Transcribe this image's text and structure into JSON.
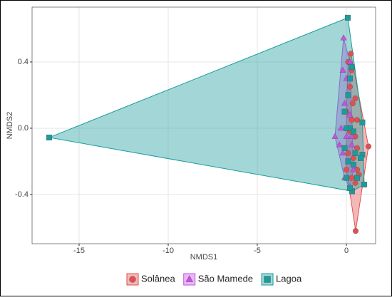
{
  "chart_data": {
    "type": "scatter",
    "x_label": "NMDS1",
    "y_label": "NMDS2",
    "xlim": [
      -17.64,
      1.64
    ],
    "ylim": [
      -0.697,
      0.731
    ],
    "xticks": [
      -15,
      -10,
      -5,
      0
    ],
    "yticks": [
      -0.4,
      {
        "value": 0,
        "label": "0.0"
      },
      0.4
    ],
    "grid": true,
    "hulls": true,
    "legend": "bottom",
    "series": [
      {
        "name": "Solânea",
        "color": "#e0504f",
        "shape": "circle",
        "x": [
          0.52,
          1.24,
          0.6,
          0.3,
          0.1,
          0.5,
          0.6,
          0.2,
          0.0,
          0.3,
          0.5,
          0.2,
          0.1,
          0.4,
          0.6,
          0.3,
          0.0,
          0.5,
          0.7,
          0.35,
          0.25
        ],
        "y": [
          -0.62,
          -0.11,
          -0.25,
          0.35,
          0.4,
          0.18,
          0.05,
          0.25,
          0.1,
          0.05,
          -0.05,
          -0.02,
          -0.15,
          -0.18,
          -0.12,
          -0.3,
          -0.25,
          -0.33,
          -0.28,
          0.15,
          0.45
        ]
      },
      {
        "name": "São Mamede",
        "color": "#c850e6",
        "shape": "triangle",
        "x": [
          -0.16,
          -0.64,
          0.2,
          -0.2,
          0.0,
          0.1,
          -0.1,
          0.2,
          -0.3,
          0.0,
          0.3,
          -0.2,
          0.1,
          0.4,
          -0.1,
          0.3,
          -0.4,
          0.2
        ],
        "y": [
          0.545,
          -0.05,
          -0.36,
          0.35,
          0.3,
          0.2,
          0.15,
          0.08,
          0.0,
          -0.05,
          -0.1,
          -0.15,
          -0.2,
          -0.25,
          -0.3,
          -0.05,
          -0.1,
          0.4
        ]
      },
      {
        "name": "Lagoa",
        "color": "#1a9c9c",
        "shape": "square",
        "x": [
          -16.68,
          0.08,
          0.32,
          1.0,
          0.9,
          0.9,
          0.8,
          0.2,
          0.3,
          0.1,
          -0.1,
          0.2,
          0.4,
          -0.1,
          0.1,
          0.4,
          0.0,
          0.6,
          0.2,
          0.5,
          0.0
        ],
        "y": [
          -0.056,
          0.667,
          -0.38,
          -0.34,
          0.035,
          -0.16,
          -0.18,
          -0.36,
          0.37,
          0.2,
          0.1,
          0.0,
          -0.02,
          -0.12,
          -0.2,
          -0.22,
          -0.3,
          -0.3,
          0.3,
          -0.15,
          0.0
        ]
      }
    ]
  }
}
